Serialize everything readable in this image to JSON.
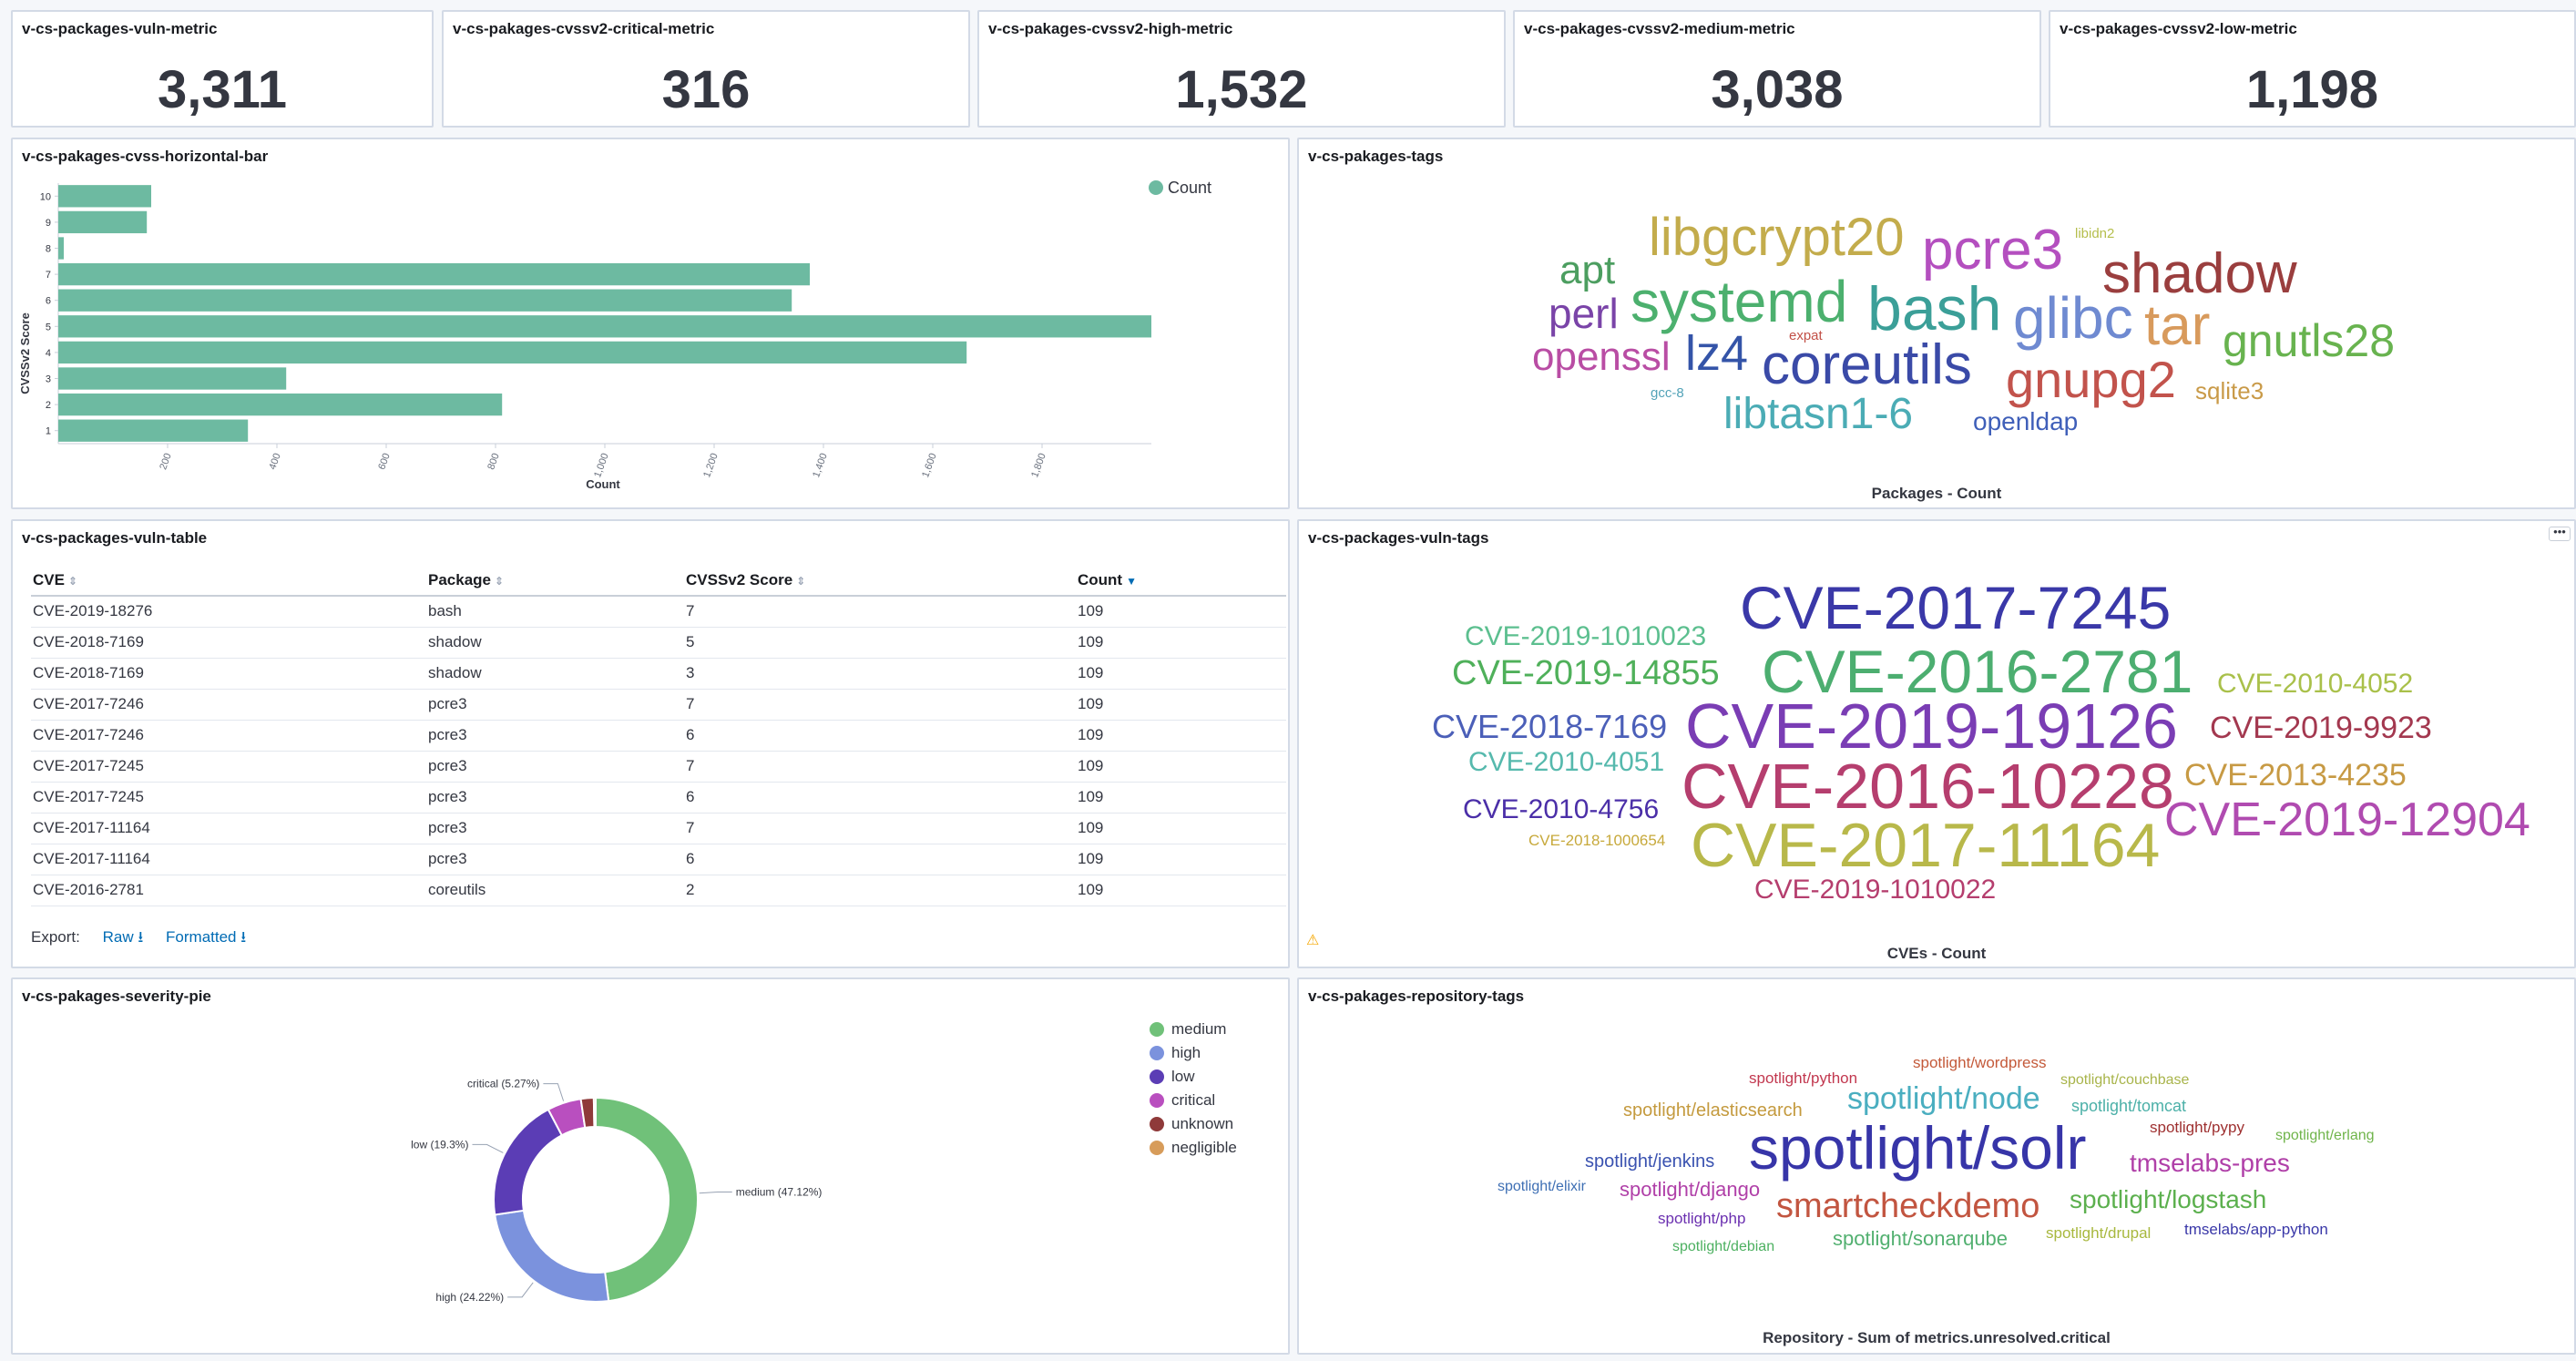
{
  "metrics": [
    {
      "title": "v-cs-packages-vuln-metric",
      "value": "3,311"
    },
    {
      "title": "v-cs-pakages-cvssv2-critical-metric",
      "value": "316"
    },
    {
      "title": "v-cs-pakages-cvssv2-high-metric",
      "value": "1,532"
    },
    {
      "title": "v-cs-pakages-cvssv2-medium-metric",
      "value": "3,038"
    },
    {
      "title": "v-cs-pakages-cvssv2-low-metric",
      "value": "1,198"
    }
  ],
  "bar_panel": {
    "title": "v-cs-pakages-cvss-horizontal-bar"
  },
  "chart_data": {
    "type": "bar",
    "orientation": "horizontal",
    "categories": [
      "10",
      "9",
      "8",
      "7",
      "6",
      "5",
      "4",
      "3",
      "2",
      "1"
    ],
    "values": [
      170,
      162,
      10,
      1375,
      1342,
      2000,
      1662,
      417,
      812,
      347
    ],
    "xlabel": "Count",
    "ylabel": "CVSSv2 Score",
    "xticks": [
      "200",
      "400",
      "600",
      "800",
      "1,000",
      "1,200",
      "1,400",
      "1,600",
      "1,800"
    ],
    "xlim": [
      0,
      2000
    ],
    "legend": [
      "Count"
    ],
    "legend_position": "top-right",
    "color": "#6dbaa1"
  },
  "pkg_tags": {
    "title": "v-cs-pakages-tags",
    "footer": "Packages - Count",
    "words": [
      {
        "t": "libgcrypt20",
        "c": "#c3ac4c",
        "s": 58
      },
      {
        "t": "pcre3",
        "c": "#b44fbf",
        "s": 62
      },
      {
        "t": "libidn2",
        "c": "#b5be4c",
        "s": 15
      },
      {
        "t": "shadow",
        "c": "#9a3e3e",
        "s": 62
      },
      {
        "t": "apt",
        "c": "#4c9e60",
        "s": 44
      },
      {
        "t": "systemd",
        "c": "#4cb06e",
        "s": 64
      },
      {
        "t": "bash",
        "c": "#3b9f98",
        "s": 68
      },
      {
        "t": "glibc",
        "c": "#6f8ad1",
        "s": 64
      },
      {
        "t": "tar",
        "c": "#d89a5c",
        "s": 62
      },
      {
        "t": "gnutls28",
        "c": "#68b34f",
        "s": 50
      },
      {
        "t": "perl",
        "c": "#7a44a8",
        "s": 46
      },
      {
        "t": "expat",
        "c": "#c25047",
        "s": 15
      },
      {
        "t": "lz4",
        "c": "#3454a8",
        "s": 54
      },
      {
        "t": "openssl",
        "c": "#b94da4",
        "s": 44
      },
      {
        "t": "coreutils",
        "c": "#3a4aa7",
        "s": 62
      },
      {
        "t": "gnupg2",
        "c": "#c2534c",
        "s": 56
      },
      {
        "t": "sqlite3",
        "c": "#c99a48",
        "s": 26
      },
      {
        "t": "gcc-8",
        "c": "#53a3b8",
        "s": 15
      },
      {
        "t": "libtasn1-6",
        "c": "#4bacb5",
        "s": 48
      },
      {
        "t": "openldap",
        "c": "#3f5fb9",
        "s": 28
      }
    ]
  },
  "vuln_table": {
    "title": "v-cs-packages-vuln-table",
    "headers": [
      "CVE",
      "Package",
      "CVSSv2 Score",
      "Count"
    ],
    "rows": [
      [
        "CVE-2019-18276",
        "bash",
        "7",
        "109"
      ],
      [
        "CVE-2018-7169",
        "shadow",
        "5",
        "109"
      ],
      [
        "CVE-2018-7169",
        "shadow",
        "3",
        "109"
      ],
      [
        "CVE-2017-7246",
        "pcre3",
        "7",
        "109"
      ],
      [
        "CVE-2017-7246",
        "pcre3",
        "6",
        "109"
      ],
      [
        "CVE-2017-7245",
        "pcre3",
        "7",
        "109"
      ],
      [
        "CVE-2017-7245",
        "pcre3",
        "6",
        "109"
      ],
      [
        "CVE-2017-11164",
        "pcre3",
        "7",
        "109"
      ],
      [
        "CVE-2017-11164",
        "pcre3",
        "6",
        "109"
      ],
      [
        "CVE-2016-2781",
        "coreutils",
        "2",
        "109"
      ]
    ],
    "export_label": "Export:",
    "raw_label": "Raw",
    "formatted_label": "Formatted"
  },
  "vuln_tags": {
    "title": "v-cs-packages-vuln-tags",
    "footer": "CVEs - Count",
    "words": [
      {
        "t": "CVE-2017-7245",
        "c": "#3a38a8",
        "s": 66
      },
      {
        "t": "CVE-2019-1010023",
        "c": "#5cbf8f",
        "s": 30
      },
      {
        "t": "CVE-2019-14855",
        "c": "#4fb05a",
        "s": 38
      },
      {
        "t": "CVE-2016-2781",
        "c": "#4cae70",
        "s": 66
      },
      {
        "t": "CVE-2010-4052",
        "c": "#a9c04a",
        "s": 30
      },
      {
        "t": "CVE-2018-7169",
        "c": "#4b5fb8",
        "s": 36
      },
      {
        "t": "CVE-2019-19126",
        "c": "#7a3db4",
        "s": 70
      },
      {
        "t": "CVE-2019-9923",
        "c": "#a3384f",
        "s": 34
      },
      {
        "t": "CVE-2010-4051",
        "c": "#56b9ad",
        "s": 30
      },
      {
        "t": "CVE-2016-10228",
        "c": "#b53e6e",
        "s": 70
      },
      {
        "t": "CVE-2013-4235",
        "c": "#c79a44",
        "s": 34
      },
      {
        "t": "CVE-2010-4756",
        "c": "#4b2fa8",
        "s": 30
      },
      {
        "t": "CVE-2019-12904",
        "c": "#b04bb0",
        "s": 52
      },
      {
        "t": "CVE-2018-1000654",
        "c": "#c7a93b",
        "s": 17
      },
      {
        "t": "CVE-2017-11164",
        "c": "#b8b84a",
        "s": 68
      },
      {
        "t": "CVE-2019-1010022",
        "c": "#b53e6e",
        "s": 30
      }
    ]
  },
  "pie": {
    "title": "v-cs-pakages-severity-pie",
    "legend_position": "top-right",
    "slices": [
      {
        "label": "medium",
        "pct": 47.12,
        "color": "#70c179",
        "callout": "medium (47.12%)"
      },
      {
        "label": "high",
        "pct": 24.22,
        "color": "#7b92dd",
        "callout": "high (24.22%)"
      },
      {
        "label": "low",
        "pct": 19.3,
        "color": "#5b3db5",
        "callout": "low (19.3%)"
      },
      {
        "label": "critical",
        "pct": 5.27,
        "color": "#b94fbf",
        "callout": "critical (5.27%)"
      },
      {
        "label": "unknown",
        "pct": 2.0,
        "color": "#8f3a3a",
        "callout": ""
      },
      {
        "label": "negligible",
        "pct": 0.3,
        "color": "#d79c5a",
        "callout": ""
      }
    ]
  },
  "repo_tags": {
    "title": "v-cs-pakages-repository-tags",
    "footer": "Repository - Sum of metrics.unresolved.critical",
    "words": [
      {
        "t": "spotlight/wordpress",
        "c": "#c45a3a",
        "s": 17
      },
      {
        "t": "spotlight/python",
        "c": "#c2384f",
        "s": 17
      },
      {
        "t": "spotlight/couchbase",
        "c": "#a8b44a",
        "s": 16
      },
      {
        "t": "spotlight/elasticsearch",
        "c": "#c49a3e",
        "s": 20
      },
      {
        "t": "spotlight/node",
        "c": "#4aaec0",
        "s": 34
      },
      {
        "t": "spotlight/tomcat",
        "c": "#4cb0a8",
        "s": 18
      },
      {
        "t": "spotlight/pypy",
        "c": "#9e3030",
        "s": 17
      },
      {
        "t": "spotlight/erlang",
        "c": "#6fb44a",
        "s": 16
      },
      {
        "t": "spotlight/jenkins",
        "c": "#3a52b0",
        "s": 20
      },
      {
        "t": "spotlight/solr",
        "c": "#3735a8",
        "s": 66
      },
      {
        "t": "tmselabs-pres",
        "c": "#b040a8",
        "s": 28
      },
      {
        "t": "spotlight/elixir",
        "c": "#3e6fb4",
        "s": 16
      },
      {
        "t": "spotlight/django",
        "c": "#b040a8",
        "s": 22
      },
      {
        "t": "smartcheckdemo",
        "c": "#c25540",
        "s": 38
      },
      {
        "t": "spotlight/logstash",
        "c": "#5cb04e",
        "s": 28
      },
      {
        "t": "spotlight/php",
        "c": "#6b30b0",
        "s": 17
      },
      {
        "t": "spotlight/sonarqube",
        "c": "#52b070",
        "s": 22
      },
      {
        "t": "spotlight/drupal",
        "c": "#a8b83e",
        "s": 17
      },
      {
        "t": "tmselabs/app-python",
        "c": "#3a38a8",
        "s": 17
      },
      {
        "t": "spotlight/debian",
        "c": "#4cb060",
        "s": 16
      }
    ]
  }
}
